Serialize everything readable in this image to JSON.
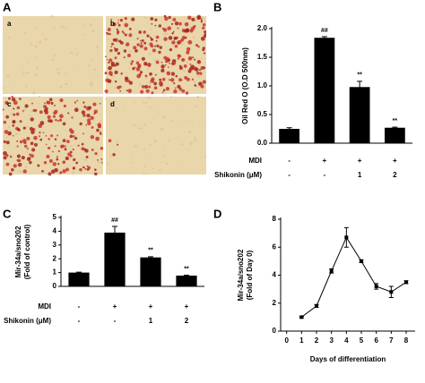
{
  "figure": {
    "panel_labels": [
      "A",
      "B",
      "C",
      "D"
    ],
    "image_labels": [
      "a",
      "b",
      "c",
      "d"
    ]
  },
  "chart_data": [
    {
      "type": "bar",
      "ylabel": [
        "Oil Red O (O.D 500nm)"
      ],
      "rows": [
        {
          "name": "MDI",
          "values": [
            "-",
            "+",
            "+",
            "+"
          ]
        },
        {
          "name": "Shikonin (μM)",
          "values": [
            "-",
            "-",
            "1",
            "2"
          ]
        }
      ],
      "values": [
        0.25,
        1.84,
        0.98,
        0.27
      ],
      "errors": [
        0.02,
        0.02,
        0.1,
        0.01
      ],
      "annotations": [
        null,
        "##",
        "**",
        "**"
      ],
      "color": "#000000",
      "ylim": [
        0,
        2.0
      ],
      "yticks": [
        {
          "value": 0,
          "label": "0.0"
        },
        0.5,
        {
          "value": 1.0,
          "label": "1.0"
        },
        1.5,
        {
          "value": 2.0,
          "label": "2.0"
        }
      ]
    },
    {
      "type": "bar",
      "ylabel": [
        "Mir-34a/sno202",
        "(Fold of control)"
      ],
      "rows": [
        {
          "name": "MDI",
          "values": [
            "-",
            "+",
            "+",
            "+"
          ]
        },
        {
          "name": "Shikonin (μM)",
          "values": [
            "-",
            "-",
            "1",
            "2"
          ]
        }
      ],
      "values": [
        1.0,
        3.9,
        2.1,
        0.78
      ],
      "errors": [
        0.03,
        0.45,
        0.05,
        0.03
      ],
      "annotations": [
        null,
        "##",
        "**",
        "**"
      ],
      "color": "#000000",
      "ylim": [
        0,
        5
      ],
      "yticks": [
        0,
        1,
        2,
        3,
        4,
        5
      ]
    },
    {
      "type": "line",
      "ylabel": [
        "Mir-34a/sno202",
        "(Fold of Day 0)"
      ],
      "xlabel": "Days of differentiation",
      "x": [
        1,
        2,
        3,
        4,
        5,
        6,
        7,
        8
      ],
      "values": [
        1.0,
        1.8,
        4.3,
        6.7,
        5.0,
        3.2,
        2.8,
        3.5
      ],
      "errors": [
        0.05,
        0.1,
        0.15,
        0.7,
        0.1,
        0.2,
        0.4,
        0.1
      ],
      "color": "#000000",
      "xlim": [
        -0.4,
        8.6
      ],
      "xticks": [
        0,
        1,
        2,
        3,
        4,
        5,
        6,
        7,
        8
      ],
      "ylim": [
        0,
        8
      ],
      "yticks": [
        0,
        2,
        4,
        6,
        8
      ]
    }
  ]
}
